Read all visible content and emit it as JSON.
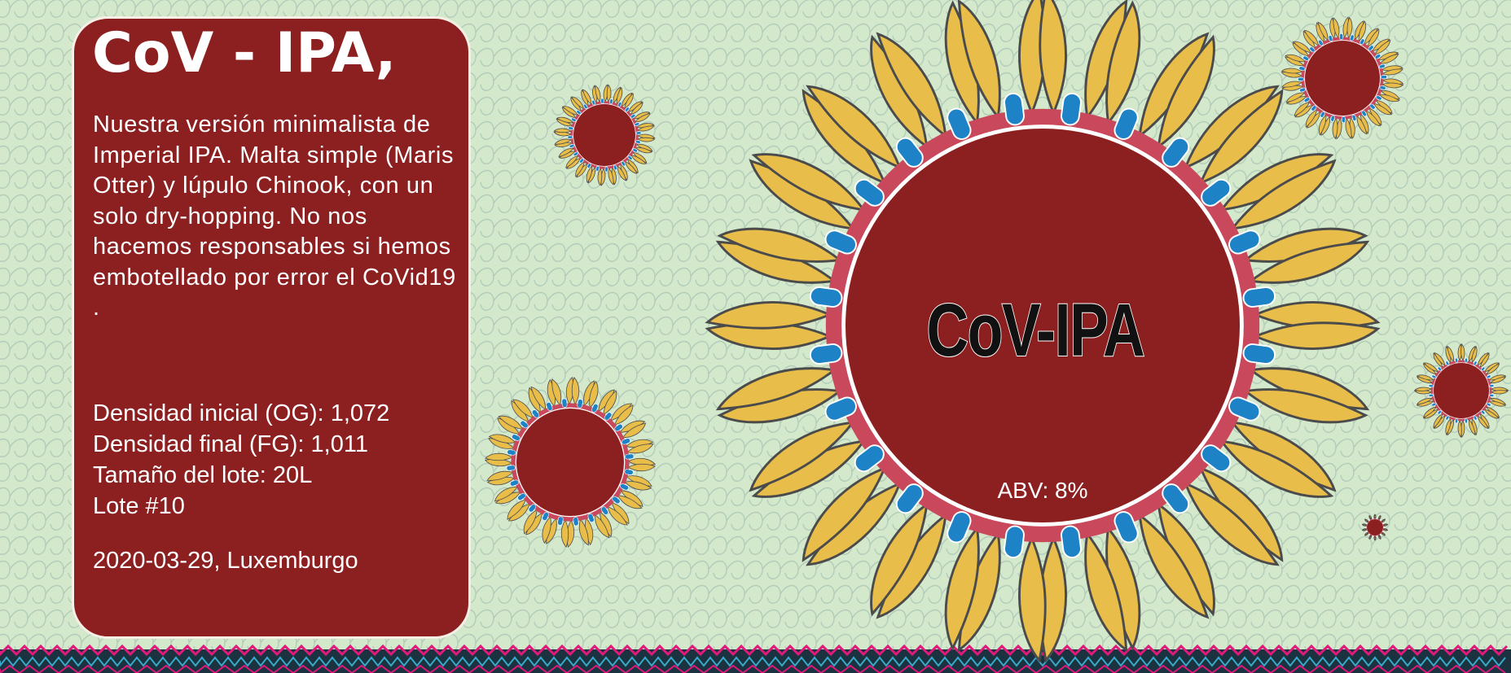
{
  "label": {
    "panel_title": "CoV - IPA,",
    "description": "Nuestra versión minimalista de Imperial IPA. Malta simple (Maris Otter) y lúpulo Chinook, con un solo dry-hopping. No nos hacemos responsables si hemos embotellado por error el CoVid19 .",
    "specs": [
      "Densidad inicial (OG): 1,072",
      "Densidad final (FG): 1,011",
      "Tamaño del lote: 20L",
      "Lote #10"
    ],
    "footer": "2020-03-29, Luxemburgo",
    "center_name": "CoV-IPA",
    "abv": "ABV: 8%"
  },
  "colors": {
    "background": "#d4e8cc",
    "pattern": "#a7c4b5",
    "panel": "#8c1f1f",
    "virus_core": "#8c1f1f",
    "petal": "#e8bd4a",
    "petal_outline": "#4b4b4b",
    "spike": "#1d82c6",
    "ring": "#c9485b",
    "border_pink": "#e0197a",
    "border_dark": "#1b3340",
    "border_blue": "#3aa7c8"
  }
}
